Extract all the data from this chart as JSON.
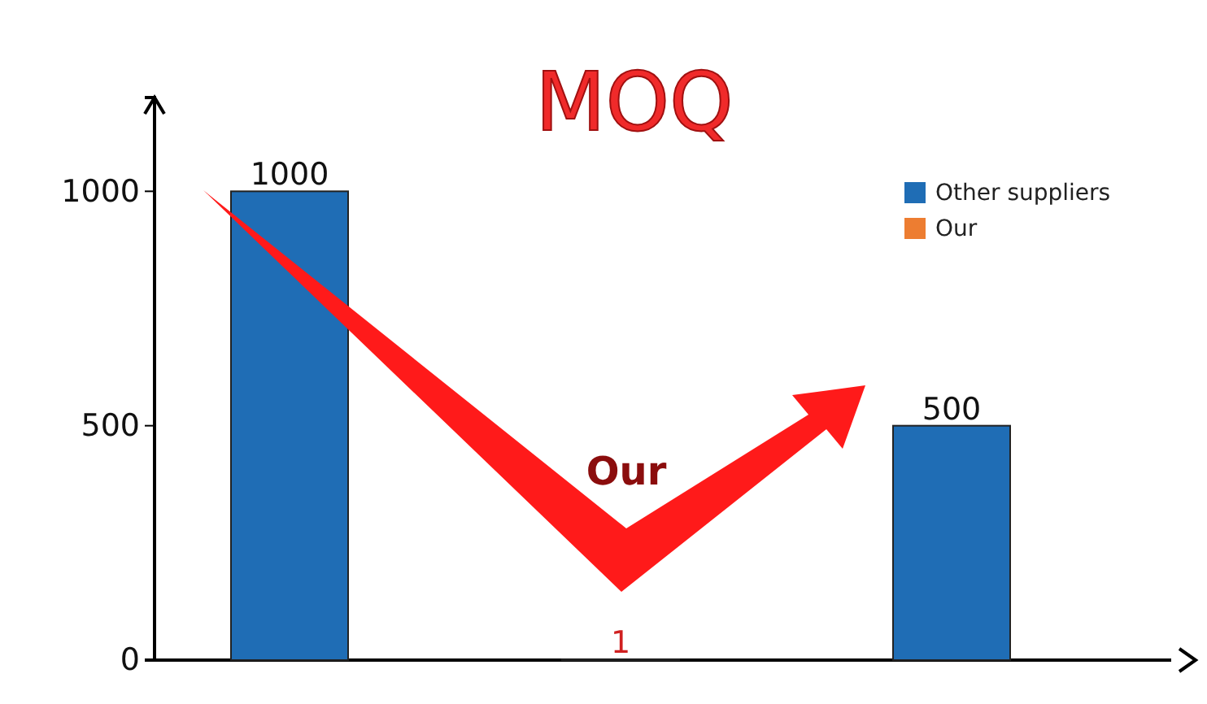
{
  "chart_data": {
    "type": "bar",
    "title": "MOQ",
    "categories": [
      null,
      null,
      null
    ],
    "series": [
      {
        "name": "Other suppliers",
        "color": "#1f6db5",
        "values": [
          1000,
          null,
          500
        ]
      },
      {
        "name": "Our",
        "color": "#ed7d31",
        "values": [
          null,
          1,
          null
        ]
      }
    ],
    "ylim": [
      0,
      1200
    ],
    "yticks": [
      0,
      500,
      1000
    ],
    "data_labels": true,
    "legend": "top right",
    "tick_labels": "y",
    "grid": false,
    "annotations": [
      "Our"
    ]
  }
}
